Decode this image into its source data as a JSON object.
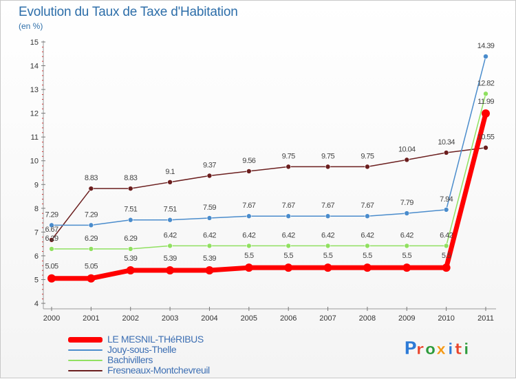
{
  "header": {
    "title": "Evolution du Taux de Taxe d'Habitation",
    "subtitle": "(en %)"
  },
  "brand": {
    "logo_text": "Proxiti",
    "letter_colors": [
      "#2e7bd6",
      "#e8452c",
      "#2e9a3c",
      "#f29a1a",
      "#2e7bd6",
      "#e8452c",
      "#2e9a3c"
    ]
  },
  "chart_data": {
    "type": "line",
    "title": "Evolution du Taux de Taxe d'Habitation",
    "ylabel": "(en %)",
    "xlabel": "",
    "categories": [
      "2000",
      "2001",
      "2002",
      "2003",
      "2004",
      "2005",
      "2006",
      "2007",
      "2008",
      "2009",
      "2010",
      "2011"
    ],
    "ylim": [
      4,
      15
    ],
    "yticks": [
      "4",
      "5",
      "6",
      "7",
      "8",
      "9",
      "10",
      "11",
      "12",
      "13",
      "14",
      "15"
    ],
    "grid": false,
    "legend_position": "bottom-left",
    "series": [
      {
        "name": "LE MESNIL-THéRIBUS",
        "color": "#ff0000",
        "values": [
          5.05,
          5.05,
          5.39,
          5.39,
          5.39,
          5.5,
          5.5,
          5.5,
          5.5,
          5.5,
          5.5,
          11.99
        ],
        "labels": [
          "5.05",
          "5.05",
          "5.39",
          "5.39",
          "5.39",
          "5.5",
          "5.5",
          "5.5",
          "5.5",
          "5.5",
          "5.5",
          "11.99"
        ]
      },
      {
        "name": "Jouy-sous-Thelle",
        "color": "#4a8ccc",
        "values": [
          7.29,
          7.29,
          7.51,
          7.51,
          7.59,
          7.67,
          7.67,
          7.67,
          7.67,
          7.79,
          7.94,
          14.39
        ],
        "labels": [
          "7.29",
          "7.29",
          "7.51",
          "7.51",
          "7.59",
          "7.67",
          "7.67",
          "7.67",
          "7.67",
          "7.79",
          "7.94",
          "14.39"
        ]
      },
      {
        "name": "Bachivillers",
        "color": "#90e060",
        "values": [
          6.29,
          6.29,
          6.29,
          6.42,
          6.42,
          6.42,
          6.42,
          6.42,
          6.42,
          6.42,
          6.42,
          12.82
        ],
        "labels": [
          "6.29",
          "6.29",
          "6.29",
          "6.42",
          "6.42",
          "6.42",
          "6.42",
          "6.42",
          "6.42",
          "6.42",
          "6.42",
          "12.82"
        ]
      },
      {
        "name": "Fresneaux-Montchevreuil",
        "color": "#6b1e1e",
        "values": [
          6.67,
          8.83,
          8.83,
          9.1,
          9.37,
          9.56,
          9.75,
          9.75,
          9.75,
          10.04,
          10.34,
          10.55
        ],
        "labels": [
          "6.67",
          "8.83",
          "8.83",
          "9.1",
          "9.37",
          "9.56",
          "9.75",
          "9.75",
          "9.75",
          "10.04",
          "10.34",
          "10.55"
        ]
      }
    ]
  }
}
